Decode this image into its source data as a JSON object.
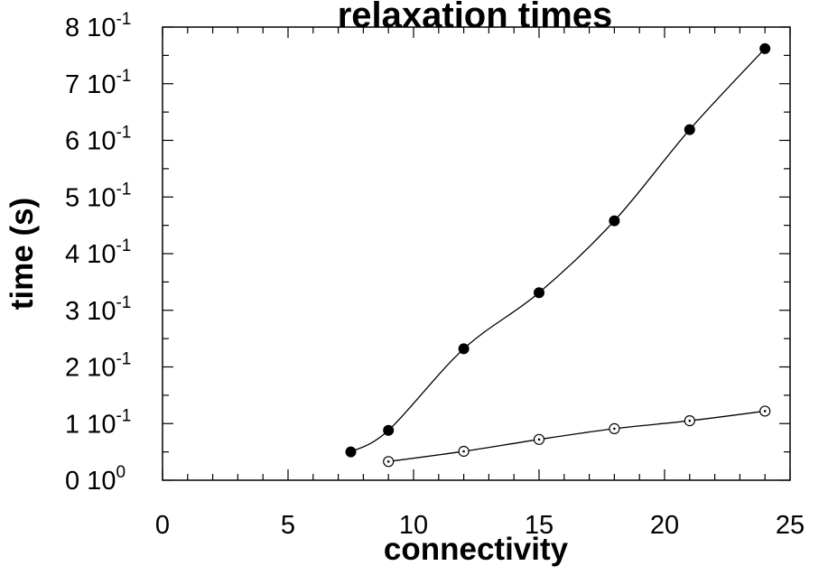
{
  "chart_data": {
    "type": "scatter",
    "title": "relaxation  times",
    "xlabel": "connectivity",
    "ylabel": "time  (s)",
    "xlim": [
      0,
      25
    ],
    "ylim": [
      0,
      0.8
    ],
    "x_ticks": [
      {
        "value": 0,
        "label": "0"
      },
      {
        "value": 5,
        "label": "5"
      },
      {
        "value": 10,
        "label": "10"
      },
      {
        "value": 15,
        "label": "15"
      },
      {
        "value": 20,
        "label": "20"
      },
      {
        "value": 25,
        "label": "25"
      }
    ],
    "y_ticks": [
      {
        "value": 0,
        "mantissa": "0 10",
        "exp": "0"
      },
      {
        "value": 0.1,
        "mantissa": "1 10",
        "exp": "-1"
      },
      {
        "value": 0.2,
        "mantissa": "2 10",
        "exp": "-1"
      },
      {
        "value": 0.3,
        "mantissa": "3 10",
        "exp": "-1"
      },
      {
        "value": 0.4,
        "mantissa": "4 10",
        "exp": "-1"
      },
      {
        "value": 0.5,
        "mantissa": "5 10",
        "exp": "-1"
      },
      {
        "value": 0.6,
        "mantissa": "6 10",
        "exp": "-1"
      },
      {
        "value": 0.7,
        "mantissa": "7 10",
        "exp": "-1"
      },
      {
        "value": 0.8,
        "mantissa": "8 10",
        "exp": "-1"
      }
    ],
    "grid": false,
    "series": [
      {
        "marker": "filled-circle",
        "color": "#000000",
        "x": [
          7.5,
          9,
          12,
          15,
          18,
          21,
          24
        ],
        "y": [
          0.05,
          0.088,
          0.232,
          0.331,
          0.458,
          0.619,
          0.762
        ],
        "fit_curve": true
      },
      {
        "marker": "open-circle-dot",
        "color": "#000000",
        "x": [
          9,
          12,
          15,
          18,
          21,
          24
        ],
        "y": [
          0.033,
          0.051,
          0.072,
          0.091,
          0.105,
          0.122
        ],
        "fit_curve": true
      }
    ]
  }
}
